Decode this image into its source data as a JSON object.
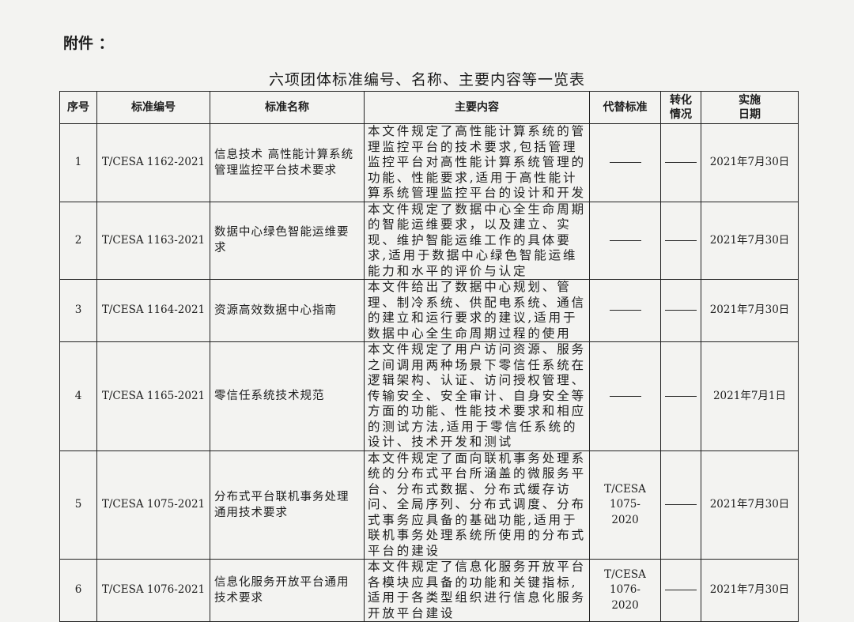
{
  "attachment_label": "附件 ：",
  "title": "六项团体标准编号、名称、主要内容等一览表",
  "table": {
    "headers": [
      "序号",
      "标准编号",
      "标准名称",
      "主要内容",
      "代替标准",
      "转化情况",
      "实施日期"
    ],
    "rows": [
      {
        "no": "1",
        "code": "T/CESA 1162-2021",
        "name": "信息技术 高性能计算系统管理监控平台技术要求",
        "content": "本文件规定了高性能计算系统的管理监控平台的技术要求,包括管理监控平台对高性能计算系统管理的功能、性能要求,适用于高性能计算系统管理监控平台的设计和开发",
        "replaces": "",
        "conversion": "",
        "date": "2021年7月30日"
      },
      {
        "no": "2",
        "code": "T/CESA 1163-2021",
        "name": "数据中心绿色智能运维要求",
        "content": "本文件规定了数据中心全生命周期的智能运维要求，以及建立、实现、维护智能运维工作的具体要求,适用于数据中心绿色智能运维能力和水平的评价与认定",
        "replaces": "",
        "conversion": "",
        "date": "2021年7月30日"
      },
      {
        "no": "3",
        "code": "T/CESA 1164-2021",
        "name": "资源高效数据中心指南",
        "content": "本文件给出了数据中心规划、管理、制冷系统、供配电系统、通信的建立和运行要求的建议,适用于数据中心全生命周期过程的使用",
        "replaces": "",
        "conversion": "",
        "date": "2021年7月30日"
      },
      {
        "no": "4",
        "code": "T/CESA 1165-2021",
        "name": "零信任系统技术规范",
        "content": "本文件规定了用户访问资源、服务之间调用两种场景下零信任系统在逻辑架构、认证、访问授权管理、传输安全、安全审计、自身安全等方面的功能、性能技术要求和相应的测试方法,适用于零信任系统的设计、技术开发和测试",
        "replaces": "",
        "conversion": "",
        "date": "2021年7月1日"
      },
      {
        "no": "5",
        "code": "T/CESA 1075-2021",
        "name": "分布式平台联机事务处理通用技术要求",
        "content": "本文件规定了面向联机事务处理系统的分布式平台所涵盖的微服务平台、分布式数据、分布式缓存访问、全局序列、分布式调度、分布式事务应具备的基础功能,适用于联机事务处理系统所使用的分布式平台的建设",
        "replaces": "T/CESA 1075-2020",
        "conversion": "",
        "date": "2021年7月30日"
      },
      {
        "no": "6",
        "code": "T/CESA 1076-2021",
        "name": "信息化服务开放平台通用技术要求",
        "content": "本文件规定了信息化服务开放平台各模块应具备的功能和关键指标,适用于各类型组织进行信息化服务开放平台建设",
        "replaces": "T/CESA 1076-2020",
        "conversion": "",
        "date": "2021年7月30日"
      }
    ]
  }
}
